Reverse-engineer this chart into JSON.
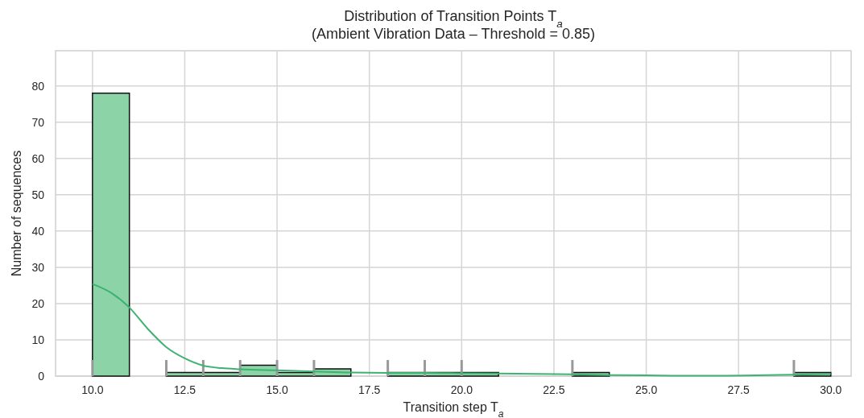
{
  "chart_data": {
    "type": "histogram",
    "title": "Distribution of Transition Points T$_{a}$",
    "subtitle": "(Ambient Vibration Data – Threshold = 0.85)",
    "xlabel": "Transition step T$_{a}$",
    "ylabel": "Number of sequences",
    "bins": [
      10,
      11,
      12,
      13,
      14,
      15,
      16,
      17,
      18,
      19,
      20,
      21,
      22,
      23,
      24,
      25,
      26,
      27,
      28,
      29,
      30
    ],
    "values": [
      78,
      0,
      1,
      1,
      3,
      1,
      2,
      0,
      1,
      1,
      1,
      0,
      0,
      1,
      0,
      0,
      0,
      0,
      0,
      1
    ],
    "color": "#8dd3a8",
    "series": [
      {
        "type": "line",
        "color": "#3cb371",
        "x": [
          10,
          10.5,
          11,
          11.5,
          12,
          12.5,
          13,
          13.5,
          14,
          15,
          16,
          17,
          18,
          19,
          20,
          21,
          22,
          23,
          24,
          25,
          26,
          27,
          28,
          29,
          30
        ],
        "values": [
          25.4,
          23,
          18.9,
          13,
          8,
          4.9,
          2.9,
          2.2,
          1.9,
          1.6,
          1.3,
          1.0,
          0.9,
          0.9,
          0.8,
          0.7,
          0.6,
          0.5,
          0.3,
          0.2,
          0.1,
          0.1,
          0.2,
          0.4,
          0.6
        ]
      }
    ],
    "xlim": [
      9,
      30.55
    ],
    "ylim": [
      0,
      89.7
    ],
    "xticks": [
      {
        "value": 10,
        "label": "10.0"
      },
      {
        "value": 12.5,
        "label": "12.5"
      },
      {
        "value": 15,
        "label": "15.0"
      },
      {
        "value": 17.5,
        "label": "17.5"
      },
      {
        "value": 20,
        "label": "20.0"
      },
      {
        "value": 22.5,
        "label": "22.5"
      },
      {
        "value": 25,
        "label": "25.0"
      },
      {
        "value": 27.5,
        "label": "27.5"
      },
      {
        "value": 30,
        "label": "30.0"
      }
    ],
    "yticks": [
      0,
      10,
      20,
      30,
      40,
      50,
      60,
      70,
      80
    ],
    "grid": true
  }
}
